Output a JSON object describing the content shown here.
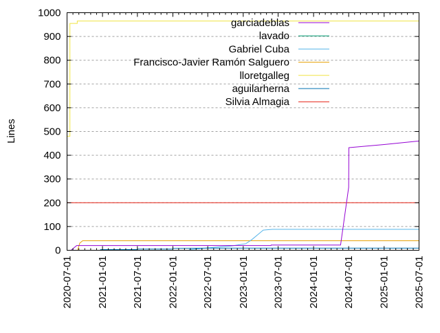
{
  "chart_data": {
    "type": "line",
    "title": "",
    "xlabel": "",
    "ylabel": "Lines",
    "xlim": [
      "2020-07-01",
      "2025-07-01"
    ],
    "ylim": [
      0,
      1000
    ],
    "grid": true,
    "legend_position": "top-right",
    "x_ticks": [
      "2020-07-01",
      "2021-01-01",
      "2021-07-01",
      "2022-01-01",
      "2022-07-01",
      "2023-01-01",
      "2023-07-01",
      "2024-01-01",
      "2024-07-01",
      "2025-01-01",
      "2025-07-01"
    ],
    "y_ticks": [
      "0",
      "100",
      "200",
      "300",
      "400",
      "500",
      "600",
      "700",
      "800",
      "900",
      "1000"
    ],
    "series": [
      {
        "name": "garciadeblas",
        "color": "#9400d3",
        "points": [
          [
            "2020-07-22",
            0
          ],
          [
            "2020-08-20",
            20
          ],
          [
            "2023-05-25",
            20
          ],
          [
            "2023-05-26",
            22
          ],
          [
            "2024-05-20",
            22
          ],
          [
            "2024-07-01",
            265
          ],
          [
            "2024-07-02",
            432
          ],
          [
            "2025-01-01",
            445
          ],
          [
            "2025-07-01",
            460
          ]
        ]
      },
      {
        "name": "lavado",
        "color": "#009e73",
        "points": []
      },
      {
        "name": "Gabriel Cuba",
        "color": "#56b4e9",
        "points": [
          [
            "2022-03-25",
            2
          ],
          [
            "2022-07-01",
            10
          ],
          [
            "2022-11-01",
            18
          ],
          [
            "2023-01-15",
            28
          ],
          [
            "2023-02-15",
            45
          ],
          [
            "2023-04-15",
            85
          ],
          [
            "2023-06-01",
            88
          ],
          [
            "2025-07-01",
            88
          ]
        ]
      },
      {
        "name": "Francisco-Javier Ramón Salguero",
        "color": "#e69f00",
        "points": [
          [
            "2020-08-25",
            0
          ],
          [
            "2020-09-05",
            30
          ],
          [
            "2020-09-20",
            40
          ],
          [
            "2025-07-01",
            40
          ]
        ]
      },
      {
        "name": "lloretgalleg",
        "color": "#f0e442",
        "points": [
          [
            "2020-07-01",
            480
          ],
          [
            "2020-07-16",
            480
          ],
          [
            "2020-07-16",
            955
          ],
          [
            "2020-08-23",
            955
          ],
          [
            "2020-08-23",
            965
          ],
          [
            "2025-07-01",
            965
          ]
        ]
      },
      {
        "name": "aguilarherna",
        "color": "#0072b2",
        "points": [
          [
            "2020-12-20",
            3
          ],
          [
            "2021-07-01",
            3
          ],
          [
            "2021-07-01",
            5
          ],
          [
            "2022-01-01",
            5
          ],
          [
            "2022-01-01",
            8
          ],
          [
            "2022-07-01",
            9
          ],
          [
            "2025-07-01",
            9
          ]
        ]
      },
      {
        "name": "Silvia Almagia",
        "color": "#e51e10",
        "points": [
          [
            "2020-07-01",
            200
          ],
          [
            "2025-07-01",
            200
          ]
        ]
      }
    ]
  }
}
